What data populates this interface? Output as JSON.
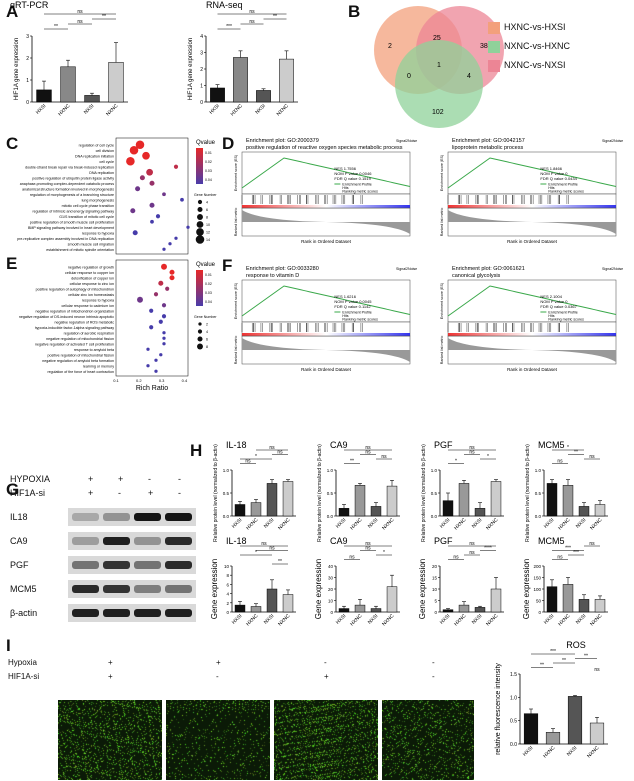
{
  "panel_labels": {
    "A": "A",
    "B": "B",
    "C": "C",
    "D": "D",
    "E": "E",
    "F": "F",
    "G": "G",
    "H": "H",
    "I": "I"
  },
  "panelA": {
    "charts": [
      {
        "title": "qRT-PCR",
        "ylabel": "HIF1A gene expression",
        "categories": [
          "HXSI",
          "HXNC",
          "NXSI",
          "NXNC"
        ],
        "values": [
          0.55,
          1.6,
          0.3,
          1.8
        ],
        "errors": [
          0.4,
          0.3,
          0.1,
          0.9
        ],
        "ylim": [
          0,
          3
        ],
        "yticks": [
          "0",
          "1",
          "2",
          "3"
        ],
        "sig": [
          {
            "a": 0,
            "b": 1,
            "t": "**",
            "lvl": 1
          },
          {
            "a": 1,
            "b": 2,
            "t": "ns",
            "lvl": 2
          },
          {
            "a": 2,
            "b": 3,
            "t": "**",
            "lvl": 3
          },
          {
            "a": 0,
            "b": 3,
            "t": "ns",
            "lvl": 4
          }
        ]
      },
      {
        "title": "RNA-seq",
        "ylabel": "HIF1A gene expression",
        "categories": [
          "HXSI",
          "HXNC",
          "NXSI",
          "NXNC"
        ],
        "values": [
          0.85,
          2.7,
          0.7,
          2.6
        ],
        "errors": [
          0.2,
          0.4,
          0.1,
          0.5
        ],
        "ylim": [
          0,
          4
        ],
        "yticks": [
          "0",
          "1",
          "2",
          "3",
          "4"
        ],
        "sig": [
          {
            "a": 0,
            "b": 1,
            "t": "***",
            "lvl": 1
          },
          {
            "a": 1,
            "b": 2,
            "t": "ns",
            "lvl": 2
          },
          {
            "a": 2,
            "b": 3,
            "t": "**",
            "lvl": 3
          },
          {
            "a": 0,
            "b": 3,
            "t": "ns",
            "lvl": 4
          }
        ]
      }
    ]
  },
  "panelB": {
    "numbers": {
      "a_only": "2",
      "b_only": "38",
      "c_only": "102",
      "ab": "25",
      "ac": "0",
      "bc": "4",
      "abc": "1"
    },
    "legend": [
      {
        "label": "HXNC-vs-HXSI",
        "color": "#f3a07c"
      },
      {
        "label": "NXNC-vs-HXNC",
        "color": "#8fd19a"
      },
      {
        "label": "NXNC-vs-NXSI",
        "color": "#ec8595"
      }
    ]
  },
  "panelC": {
    "terms": [
      "regulation of cell cycle",
      "cell division",
      "DNA replication initiation",
      "cell cycle",
      "double-strand break repair via break-induced replication",
      "DNA replication",
      "positive regulation of ubiquitin protein ligase activity",
      "anaphase-promoting complex-dependent catabolic process",
      "anatomical structure formation involved in morphogenesis",
      "regulation of morphogenesis of a branching structure",
      "lung morphogenesis",
      "mitotic cell cycle phase transition",
      "regulation of intrinsic and energy signaling pathway",
      "G1/S transition of mitotic cell cycle",
      "positive regulation of smooth muscle cell proliferation",
      "BMP signaling pathway involved in heart development",
      "response to hypoxia",
      "pre-replicative complex assembly involved in DNA replication",
      "smooth muscle cell migration",
      "establishment of mitotic spindle orientation"
    ],
    "rich": [
      0.2,
      0.15,
      0.25,
      0.12,
      0.5,
      0.28,
      0.22,
      0.3,
      0.18,
      0.4,
      0.55,
      0.3,
      0.14,
      0.35,
      0.3,
      0.6,
      0.16,
      0.5,
      0.45,
      0.4
    ],
    "count": [
      14,
      14,
      12,
      14,
      4,
      10,
      6,
      6,
      6,
      3,
      3,
      6,
      6,
      4,
      3,
      2,
      6,
      2,
      2,
      2
    ],
    "q": [
      0.0,
      0.0,
      0.0,
      0.0,
      0.01,
      0.01,
      0.02,
      0.02,
      0.03,
      0.03,
      0.04,
      0.03,
      0.03,
      0.04,
      0.04,
      0.04,
      0.04,
      0.04,
      0.04,
      0.04
    ],
    "xlabel": "Rich Ratio",
    "xticks": [
      "0",
      "0.1",
      "0.2",
      "0.3",
      "0.4",
      "0.5"
    ],
    "legend_title": "Qvalue",
    "qticks": [
      "0.01",
      "0.02",
      "0.03",
      "0.04"
    ],
    "count_title": "Gene Number",
    "count_ticks": [
      "4",
      "6",
      "8",
      "10",
      "12",
      "14"
    ]
  },
  "panelE": {
    "terms": [
      "negative regulation of growth",
      "cellular response to copper ion",
      "detoxification of copper ion",
      "cellular response to zinc ion",
      "positive regulation of autophagy of mitochondrion",
      "cellular zinc ion homeostasis",
      "response to hypoxia",
      "cellular response to cadmium ion",
      "negative regulation of mitochondrion organization",
      "negative regulation of DS-induced neuron intrinsic apoptotic",
      "negative regulation of ROS metabolic",
      "hypoxia-inducible factor-1alpha signaling pathway",
      "regulation of aerobic respiration",
      "negative regulation of mitochondrial fission",
      "negative regulation of activated T cell proliferation",
      "response to amyloid beta",
      "positive regulation of mitochondrial fission",
      "negative regulation of amyloid beta formation",
      "learning or memory",
      "regulation of the force of heart contraction"
    ],
    "rich": [
      0.3,
      0.35,
      0.35,
      0.28,
      0.32,
      0.25,
      0.15,
      0.3,
      0.22,
      0.3,
      0.28,
      0.22,
      0.3,
      0.3,
      0.3,
      0.2,
      0.28,
      0.25,
      0.2,
      0.25
    ],
    "count": [
      8,
      6,
      6,
      6,
      4,
      4,
      8,
      4,
      4,
      4,
      4,
      4,
      2,
      2,
      2,
      2,
      2,
      2,
      2,
      2
    ],
    "q": [
      0.0,
      0.0,
      0.0,
      0.01,
      0.02,
      0.02,
      0.03,
      0.03,
      0.04,
      0.04,
      0.04,
      0.04,
      0.04,
      0.04,
      0.04,
      0.04,
      0.04,
      0.04,
      0.04,
      0.04
    ],
    "xlabel": "Rich Ratio",
    "xticks": [
      "0.1",
      "0.2",
      "0.3",
      "0.4"
    ],
    "legend_title": "Qvalue",
    "qticks": [
      "0.01",
      "0.02",
      "0.03",
      "0.04"
    ],
    "count_title": "Gene Number",
    "count_ticks": [
      "2",
      "4",
      "6",
      "8"
    ]
  },
  "gsea": [
    {
      "title": "Enrichment plot: GO:2000379",
      "subtitle": "positive regulation of reactive oxygen species metabolic process",
      "nes": "NES 1.7556",
      "nom": "NOM P value 0.0046",
      "fdr": "FDR Q value 0.1519",
      "signal": "Signal2Noise"
    },
    {
      "title": "Enrichment plot: GO:0042157",
      "subtitle": "lipoprotein metabolic process",
      "nes": "NES 1.8466",
      "nom": "NOM P value 0",
      "fdr": "FDR Q value 0.0434",
      "signal": "Signal2Noise"
    },
    {
      "title": "Enrichment plot: GO:0033280",
      "subtitle": "response to vitamin D",
      "nes": "NES 1.6216",
      "nom": "NOM P value 0.0045",
      "fdr": "FDR Q value 0.1142",
      "signal": "Signal2Noise"
    },
    {
      "title": "Enrichment plot: GO:0061621",
      "subtitle": "canonical glycolysis",
      "nes": "NES 2.1004",
      "nom": "NOM P value 0",
      "fdr": "FDR Q value 0.0367",
      "signal": "Signal2Noise"
    }
  ],
  "gsea_common": {
    "es_label": "Enrichment score (ES)",
    "rank_label": "Ranked list metric",
    "xlabel": "Rank in Ordered Dataset",
    "leg1": "Enrichment Profile",
    "leg2": "Hits",
    "leg3": "Ranking metric scores"
  },
  "panelG": {
    "cond_rows": [
      {
        "label": "HYPOXIA",
        "vals": [
          "+",
          "+",
          "-",
          "-"
        ]
      },
      {
        "label": "HIF1A-si",
        "vals": [
          "+",
          "-",
          "+",
          "-"
        ]
      }
    ],
    "blots": [
      "IL18",
      "CA9",
      "PGF",
      "MCM5",
      "β-actin"
    ]
  },
  "panelH": {
    "ylabel_top": "Relative protein level (normalized to β-actin)",
    "ylabel_bottom": "Gene expression",
    "categories": [
      "HXSI",
      "HXNC",
      "NXSI",
      "NXNC"
    ],
    "top": [
      {
        "title": "IL-18",
        "values": [
          0.3,
          0.35,
          0.85,
          0.9
        ],
        "errors": [
          0.08,
          0.08,
          0.1,
          0.05
        ],
        "ylim": [
          0,
          1.2
        ],
        "yticks": [
          "0.0",
          "0.5",
          "1.0"
        ],
        "sig": [
          {
            "a": 0,
            "b": 1,
            "t": "ns",
            "lvl": 1
          },
          {
            "a": 0,
            "b": 2,
            "t": "*",
            "lvl": 2
          },
          {
            "a": 2,
            "b": 3,
            "t": "ns",
            "lvl": 3
          },
          {
            "a": 1,
            "b": 3,
            "t": "ns",
            "lvl": 4
          }
        ]
      },
      {
        "title": "CA9",
        "values": [
          0.2,
          0.8,
          0.25,
          0.78
        ],
        "errors": [
          0.1,
          0.05,
          0.1,
          0.15
        ],
        "ylim": [
          0,
          1.2
        ],
        "yticks": [
          "0.0",
          "0.5",
          "1.0"
        ],
        "sig": [
          {
            "a": 0,
            "b": 1,
            "t": "**",
            "lvl": 1
          },
          {
            "a": 2,
            "b": 3,
            "t": "ns",
            "lvl": 2
          },
          {
            "a": 1,
            "b": 2,
            "t": "ns",
            "lvl": 3
          },
          {
            "a": 0,
            "b": 3,
            "t": "ns",
            "lvl": 4
          }
        ]
      },
      {
        "title": "PGF",
        "values": [
          0.4,
          0.85,
          0.2,
          0.9
        ],
        "errors": [
          0.2,
          0.08,
          0.15,
          0.05
        ],
        "ylim": [
          0,
          1.2
        ],
        "yticks": [
          "0.0",
          "0.5",
          "1.0"
        ],
        "sig": [
          {
            "a": 0,
            "b": 1,
            "t": "*",
            "lvl": 1
          },
          {
            "a": 2,
            "b": 3,
            "t": "*",
            "lvl": 2
          },
          {
            "a": 1,
            "b": 2,
            "t": "ns",
            "lvl": 3
          },
          {
            "a": 0,
            "b": 3,
            "t": "ns",
            "lvl": 4
          }
        ]
      },
      {
        "title": "MCM5",
        "values": [
          0.85,
          0.8,
          0.25,
          0.3
        ],
        "errors": [
          0.1,
          0.15,
          0.1,
          0.1
        ],
        "ylim": [
          0,
          1.2
        ],
        "yticks": [
          "0.0",
          "0.5",
          "1.0"
        ],
        "sig": [
          {
            "a": 0,
            "b": 1,
            "t": "ns",
            "lvl": 1
          },
          {
            "a": 2,
            "b": 3,
            "t": "ns",
            "lvl": 2
          },
          {
            "a": 1,
            "b": 2,
            "t": "**",
            "lvl": 3
          },
          {
            "a": 0,
            "b": 2,
            "t": "*",
            "lvl": 4
          }
        ]
      }
    ],
    "bottom": [
      {
        "title": "IL-18",
        "values": [
          1.5,
          1.2,
          5,
          3.8
        ],
        "errors": [
          0.8,
          0.6,
          2,
          1
        ],
        "ylim": [
          0,
          10
        ],
        "yticks": [
          "0",
          "2",
          "4",
          "6",
          "8",
          "10"
        ],
        "sig": [
          {
            "a": 2,
            "b": 3,
            "t": "**",
            "lvl": 0
          },
          {
            "a": 0,
            "b": 2,
            "t": "*",
            "lvl": 2
          },
          {
            "a": 1,
            "b": 3,
            "t": "ns",
            "lvl": 3
          },
          {
            "a": 0,
            "b": 3,
            "t": "ns",
            "lvl": 4
          }
        ]
      },
      {
        "title": "CA9",
        "values": [
          3,
          6,
          3,
          22
        ],
        "errors": [
          2,
          5,
          2,
          10
        ],
        "ylim": [
          0,
          40
        ],
        "yticks": [
          "0",
          "10",
          "20",
          "30",
          "40"
        ],
        "sig": [
          {
            "a": 0,
            "b": 1,
            "t": "ns",
            "lvl": 1
          },
          {
            "a": 2,
            "b": 3,
            "t": "*",
            "lvl": 2
          },
          {
            "a": 1,
            "b": 2,
            "t": "ns",
            "lvl": 3
          },
          {
            "a": 0,
            "b": 3,
            "t": "ns",
            "lvl": 4
          }
        ]
      },
      {
        "title": "PGF",
        "values": [
          1,
          3,
          2,
          10
        ],
        "errors": [
          0.5,
          1.5,
          0.5,
          5
        ],
        "ylim": [
          0,
          20
        ],
        "yticks": [
          "0",
          "5",
          "10",
          "15",
          "20"
        ],
        "sig": [
          {
            "a": 0,
            "b": 1,
            "t": "ns",
            "lvl": 1
          },
          {
            "a": 1,
            "b": 2,
            "t": "ns",
            "lvl": 2
          },
          {
            "a": 2,
            "b": 3,
            "t": "****",
            "lvl": 3
          },
          {
            "a": 0,
            "b": 3,
            "t": "ns",
            "lvl": 4
          }
        ]
      },
      {
        "title": "MCM5",
        "values": [
          110,
          120,
          55,
          55
        ],
        "errors": [
          30,
          30,
          20,
          15
        ],
        "ylim": [
          0,
          200
        ],
        "yticks": [
          "0",
          "50",
          "100",
          "150",
          "200"
        ],
        "sig": [
          {
            "a": 0,
            "b": 1,
            "t": "ns",
            "lvl": 1
          },
          {
            "a": 1,
            "b": 2,
            "t": "***",
            "lvl": 2
          },
          {
            "a": 0,
            "b": 2,
            "t": "***",
            "lvl": 3
          },
          {
            "a": 2,
            "b": 3,
            "t": "ns",
            "lvl": 4
          }
        ]
      }
    ]
  },
  "panelI": {
    "rows": [
      {
        "label": "Hypoxia",
        "vals": [
          "+",
          "+",
          "-",
          "-"
        ]
      },
      {
        "label": "HIF1A-si",
        "vals": [
          "+",
          "-",
          "+",
          "-"
        ]
      }
    ],
    "chart": {
      "title": "ROS",
      "ylabel": "relative fluorescence intensity",
      "categories": [
        "HXSI",
        "HXNC",
        "NXSI",
        "NXNC"
      ],
      "values": [
        0.65,
        0.25,
        1.02,
        0.45
      ],
      "errors": [
        0.1,
        0.08,
        0.02,
        0.12
      ],
      "ylim": [
        0,
        1.5
      ],
      "yticks": [
        "0.0",
        "0.5",
        "1.0",
        "1.5"
      ],
      "sig": [
        {
          "a": 3,
          "b": 3,
          "t": "ns",
          "lvl": 0
        },
        {
          "a": 0,
          "b": 1,
          "t": "**",
          "lvl": 1
        },
        {
          "a": 1,
          "b": 2,
          "t": "**",
          "lvl": 2
        },
        {
          "a": 2,
          "b": 3,
          "t": "**",
          "lvl": 3
        },
        {
          "a": 0,
          "b": 2,
          "t": "***",
          "lvl": 4
        }
      ]
    }
  },
  "chart_data": [
    {
      "type": "bar",
      "title": "qRT-PCR",
      "categories": [
        "HXSI",
        "HXNC",
        "NXSI",
        "NXNC"
      ],
      "values": [
        0.55,
        1.6,
        0.3,
        1.8
      ],
      "ylabel": "HIF1A gene expression",
      "ylim": [
        0,
        3
      ]
    },
    {
      "type": "bar",
      "title": "RNA-seq",
      "categories": [
        "HXSI",
        "HXNC",
        "NXSI",
        "NXNC"
      ],
      "values": [
        0.85,
        2.7,
        0.7,
        2.6
      ],
      "ylabel": "HIF1A gene expression",
      "ylim": [
        0,
        4
      ]
    },
    {
      "type": "bar",
      "title": "ROS",
      "categories": [
        "HXSI",
        "HXNC",
        "NXSI",
        "NXNC"
      ],
      "values": [
        0.65,
        0.25,
        1.02,
        0.45
      ],
      "ylabel": "relative fluorescence intensity",
      "ylim": [
        0,
        1.5
      ]
    }
  ]
}
